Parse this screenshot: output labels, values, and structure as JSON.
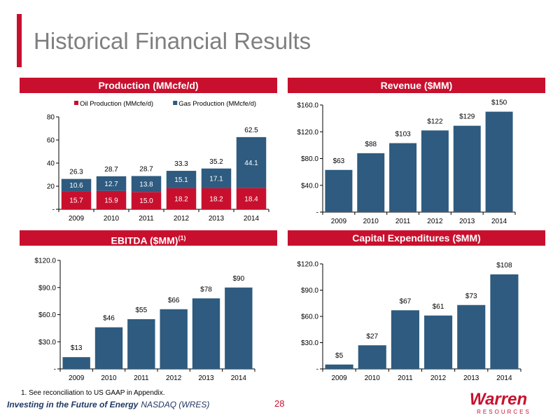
{
  "slide": {
    "title": "Historical Financial Results",
    "footnote": "1. See reconciliation to US GAAP in Appendix.",
    "tagline": "Investing in the Future of Energy",
    "ticker": "NASDAQ (WRES)",
    "page_number": "28",
    "logo_text": "Warren",
    "logo_subtext": "RESOURCES"
  },
  "colors": {
    "accent": "#c8102e",
    "bar": "#2e5b7f",
    "title_gray": "#7f7f7f",
    "tagline": "#1f3864"
  },
  "chart_data": [
    {
      "type": "bar",
      "stacked": true,
      "title": "Production (MMcfe/d)",
      "categories": [
        "2009",
        "2010",
        "2011",
        "2012",
        "2013",
        "2014"
      ],
      "series": [
        {
          "name": "Oil Production (MMcfe/d)",
          "color": "#c8102e",
          "values": [
            15.7,
            15.9,
            15.0,
            18.2,
            18.2,
            18.4
          ],
          "labels": [
            "15.7",
            "15.9",
            "15.0",
            "18.2",
            "18.2",
            "18.4"
          ]
        },
        {
          "name": "Gas Production (MMcfe/d)",
          "color": "#2e5b7f",
          "values": [
            10.6,
            12.7,
            13.8,
            15.1,
            17.1,
            44.1
          ],
          "labels": [
            "10.6",
            "12.7",
            "13.8",
            "15.1",
            "17.1",
            "44.1"
          ]
        }
      ],
      "totals": [
        "26.3",
        "28.7",
        "28.7",
        "33.3",
        "35.2",
        "62.5"
      ],
      "ylim": [
        0,
        80
      ],
      "yticks": [
        0,
        20,
        40,
        60,
        80
      ],
      "ytick_labels": [
        "-",
        "20",
        "40",
        "60",
        "80"
      ],
      "legend": "top",
      "grid": false
    },
    {
      "type": "bar",
      "title": "Revenue ($MM)",
      "categories": [
        "2009",
        "2010",
        "2011",
        "2012",
        "2013",
        "2014"
      ],
      "values": [
        63,
        88,
        103,
        122,
        129,
        150
      ],
      "data_labels": [
        "$63",
        "$88",
        "$103",
        "$122",
        "$129",
        "$150"
      ],
      "ylim": [
        0,
        160
      ],
      "yticks": [
        0,
        40,
        80,
        120,
        160
      ],
      "ytick_labels": [
        "-",
        "$40.0",
        "$80.0",
        "$120.0",
        "$160.0"
      ],
      "grid": false
    },
    {
      "type": "bar",
      "title": "EBITDA ($MM)",
      "title_superscript": "(1)",
      "categories": [
        "2009",
        "2010",
        "2011",
        "2012",
        "2013",
        "2014"
      ],
      "values": [
        13,
        46,
        55,
        66,
        78,
        90
      ],
      "data_labels": [
        "$13",
        "$46",
        "$55",
        "$66",
        "$78",
        "$90"
      ],
      "ylim": [
        0,
        120
      ],
      "yticks": [
        0,
        30,
        60,
        90,
        120
      ],
      "ytick_labels": [
        "-",
        "$30.0",
        "$60.0",
        "$90.0",
        "$120.0"
      ],
      "grid": false
    },
    {
      "type": "bar",
      "title": "Capital Expenditures ($MM)",
      "categories": [
        "2009",
        "2010",
        "2011",
        "2012",
        "2013",
        "2014"
      ],
      "values": [
        5,
        27,
        67,
        61,
        73,
        108
      ],
      "data_labels": [
        "$5",
        "$27",
        "$67",
        "$61",
        "$73",
        "$108"
      ],
      "ylim": [
        0,
        120
      ],
      "yticks": [
        0,
        30,
        60,
        90,
        120
      ],
      "ytick_labels": [
        "-",
        "$30.0",
        "$60.0",
        "$90.0",
        "$120.0"
      ],
      "grid": false
    }
  ]
}
